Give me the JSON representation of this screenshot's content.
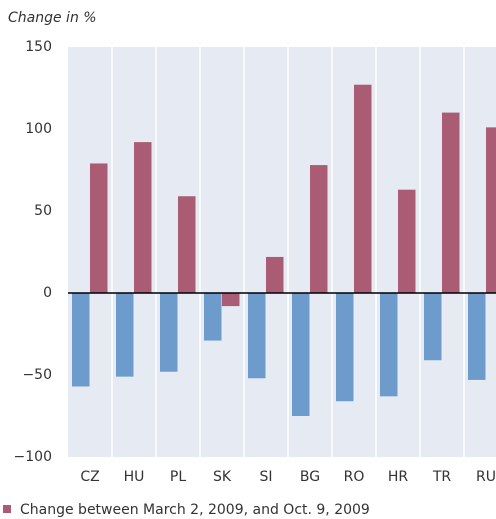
{
  "chart_data": {
    "type": "bar",
    "y_label": "Change in %",
    "categories": [
      "CZ",
      "HU",
      "PL",
      "SK",
      "SI",
      "BG",
      "RO",
      "HR",
      "TR",
      "RU"
    ],
    "series": [
      {
        "color": "#6d9bcb",
        "values": [
          -57,
          -51,
          -48,
          -29,
          -52,
          -75,
          -66,
          -63,
          -41,
          -53
        ]
      },
      {
        "name": "Change between March 2, 2009, and Oct. 9, 2009",
        "color": "#a95c74",
        "values": [
          79,
          92,
          59,
          -8,
          22,
          78,
          127,
          63,
          110,
          101
        ]
      }
    ],
    "ylim": [
      -100,
      150
    ],
    "yticks": [
      {
        "value": -100,
        "label": "−100"
      },
      {
        "value": -50,
        "label": "−50"
      },
      0,
      50,
      100,
      150
    ],
    "grid": false,
    "background": "#e6ebf3"
  }
}
